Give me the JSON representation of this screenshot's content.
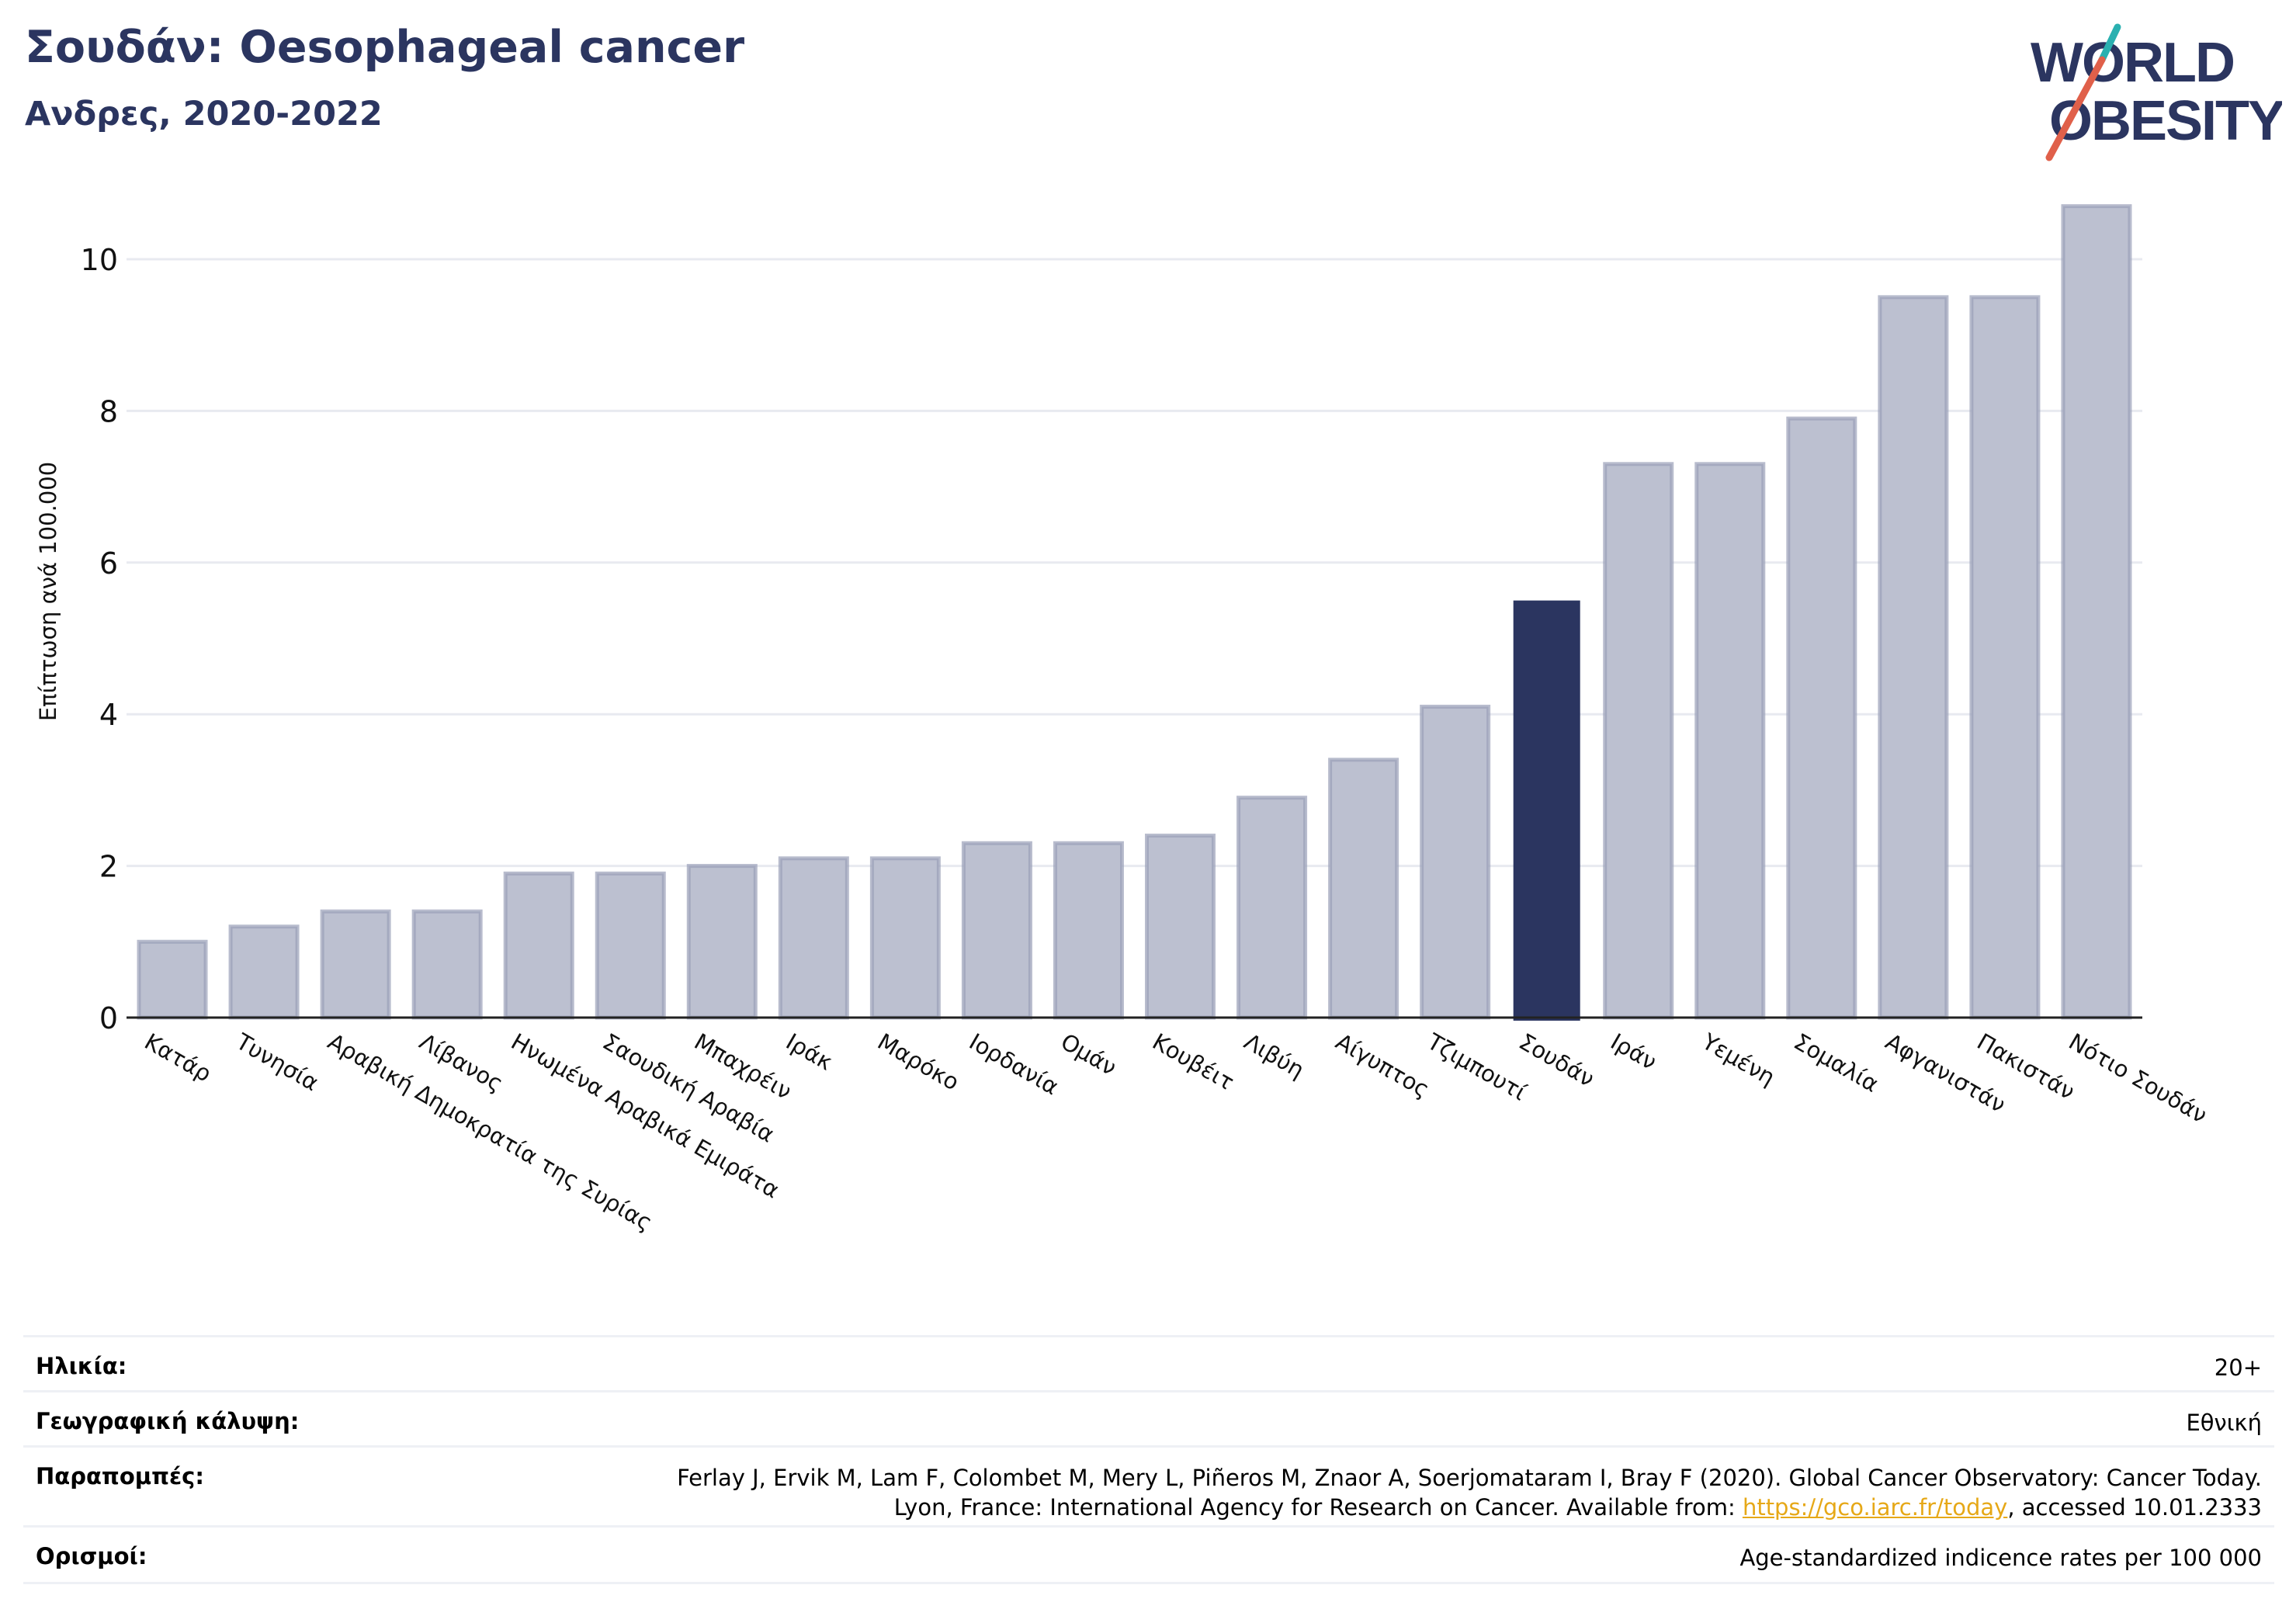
{
  "header": {
    "title": "Σουδάν: Oesophageal cancer",
    "subtitle": "Ανδρες, 2020-2022"
  },
  "logo": {
    "line1": "WORLD",
    "line2": "OBESITY",
    "accent_color": "#2ab0b0",
    "slash_color": "#e0604a"
  },
  "colors": {
    "highlight": "#2b3560",
    "bar": "#bcc0d0",
    "bar_edge": "#9aa0b8",
    "text_dark": "#2b3560"
  },
  "chart_data": {
    "type": "bar",
    "title": "Σουδάν: Oesophageal cancer",
    "subtitle": "Ανδρες, 2020-2022",
    "xlabel": "",
    "ylabel": "Επίπτωση ανά 100.000",
    "ylim": [
      0,
      11
    ],
    "yticks": [
      0,
      2,
      4,
      6,
      8,
      10
    ],
    "grid": true,
    "highlight": "Σουδάν",
    "categories": [
      "Κατάρ",
      "Τυνησία",
      "Αραβική Δημοκρατία της Συρίας",
      "Λίβανος",
      "Ηνωμένα Αραβικά Εμιράτα",
      "Σαουδική Αραβία",
      "Μπαχρέιν",
      "Ιράκ",
      "Μαρόκο",
      "Ιορδανία",
      "Ομάν",
      "Κουβέιτ",
      "Λιβύη",
      "Αίγυπτος",
      "Τζιμπουτί",
      "Σουδάν",
      "Ιράν",
      "Υεμένη",
      "Σομαλία",
      "Αφγανιστάν",
      "Πακιστάν",
      "Νότιο Σουδάν"
    ],
    "values": [
      1.0,
      1.2,
      1.4,
      1.4,
      1.9,
      1.9,
      2.0,
      2.1,
      2.1,
      2.3,
      2.3,
      2.4,
      2.9,
      3.4,
      4.1,
      5.5,
      7.3,
      7.3,
      7.9,
      9.5,
      9.5,
      10.7
    ]
  },
  "info": {
    "age_label": "Ηλικία:",
    "age_value": "20+",
    "coverage_label": "Γεωγραφική κάλυψη:",
    "coverage_value": "Εθνική",
    "refs_label": "Παραπομπές:",
    "refs_line1": "Ferlay J, Ervik M, Lam F, Colombet M, Mery L, Piñeros M, Znaor A, Soerjomataram I, Bray F (2020). Global Cancer Observatory: Cancer Today.",
    "refs_line2_pre": "Lyon, France: International Agency for Research on Cancer. Available from: ",
    "refs_link": "https://gco.iarc.fr/today",
    "refs_line2_post": ", accessed 10.01.2333",
    "defs_label": "Ορισμοί:",
    "defs_value": "Age-standardized indicence rates per 100 000"
  }
}
